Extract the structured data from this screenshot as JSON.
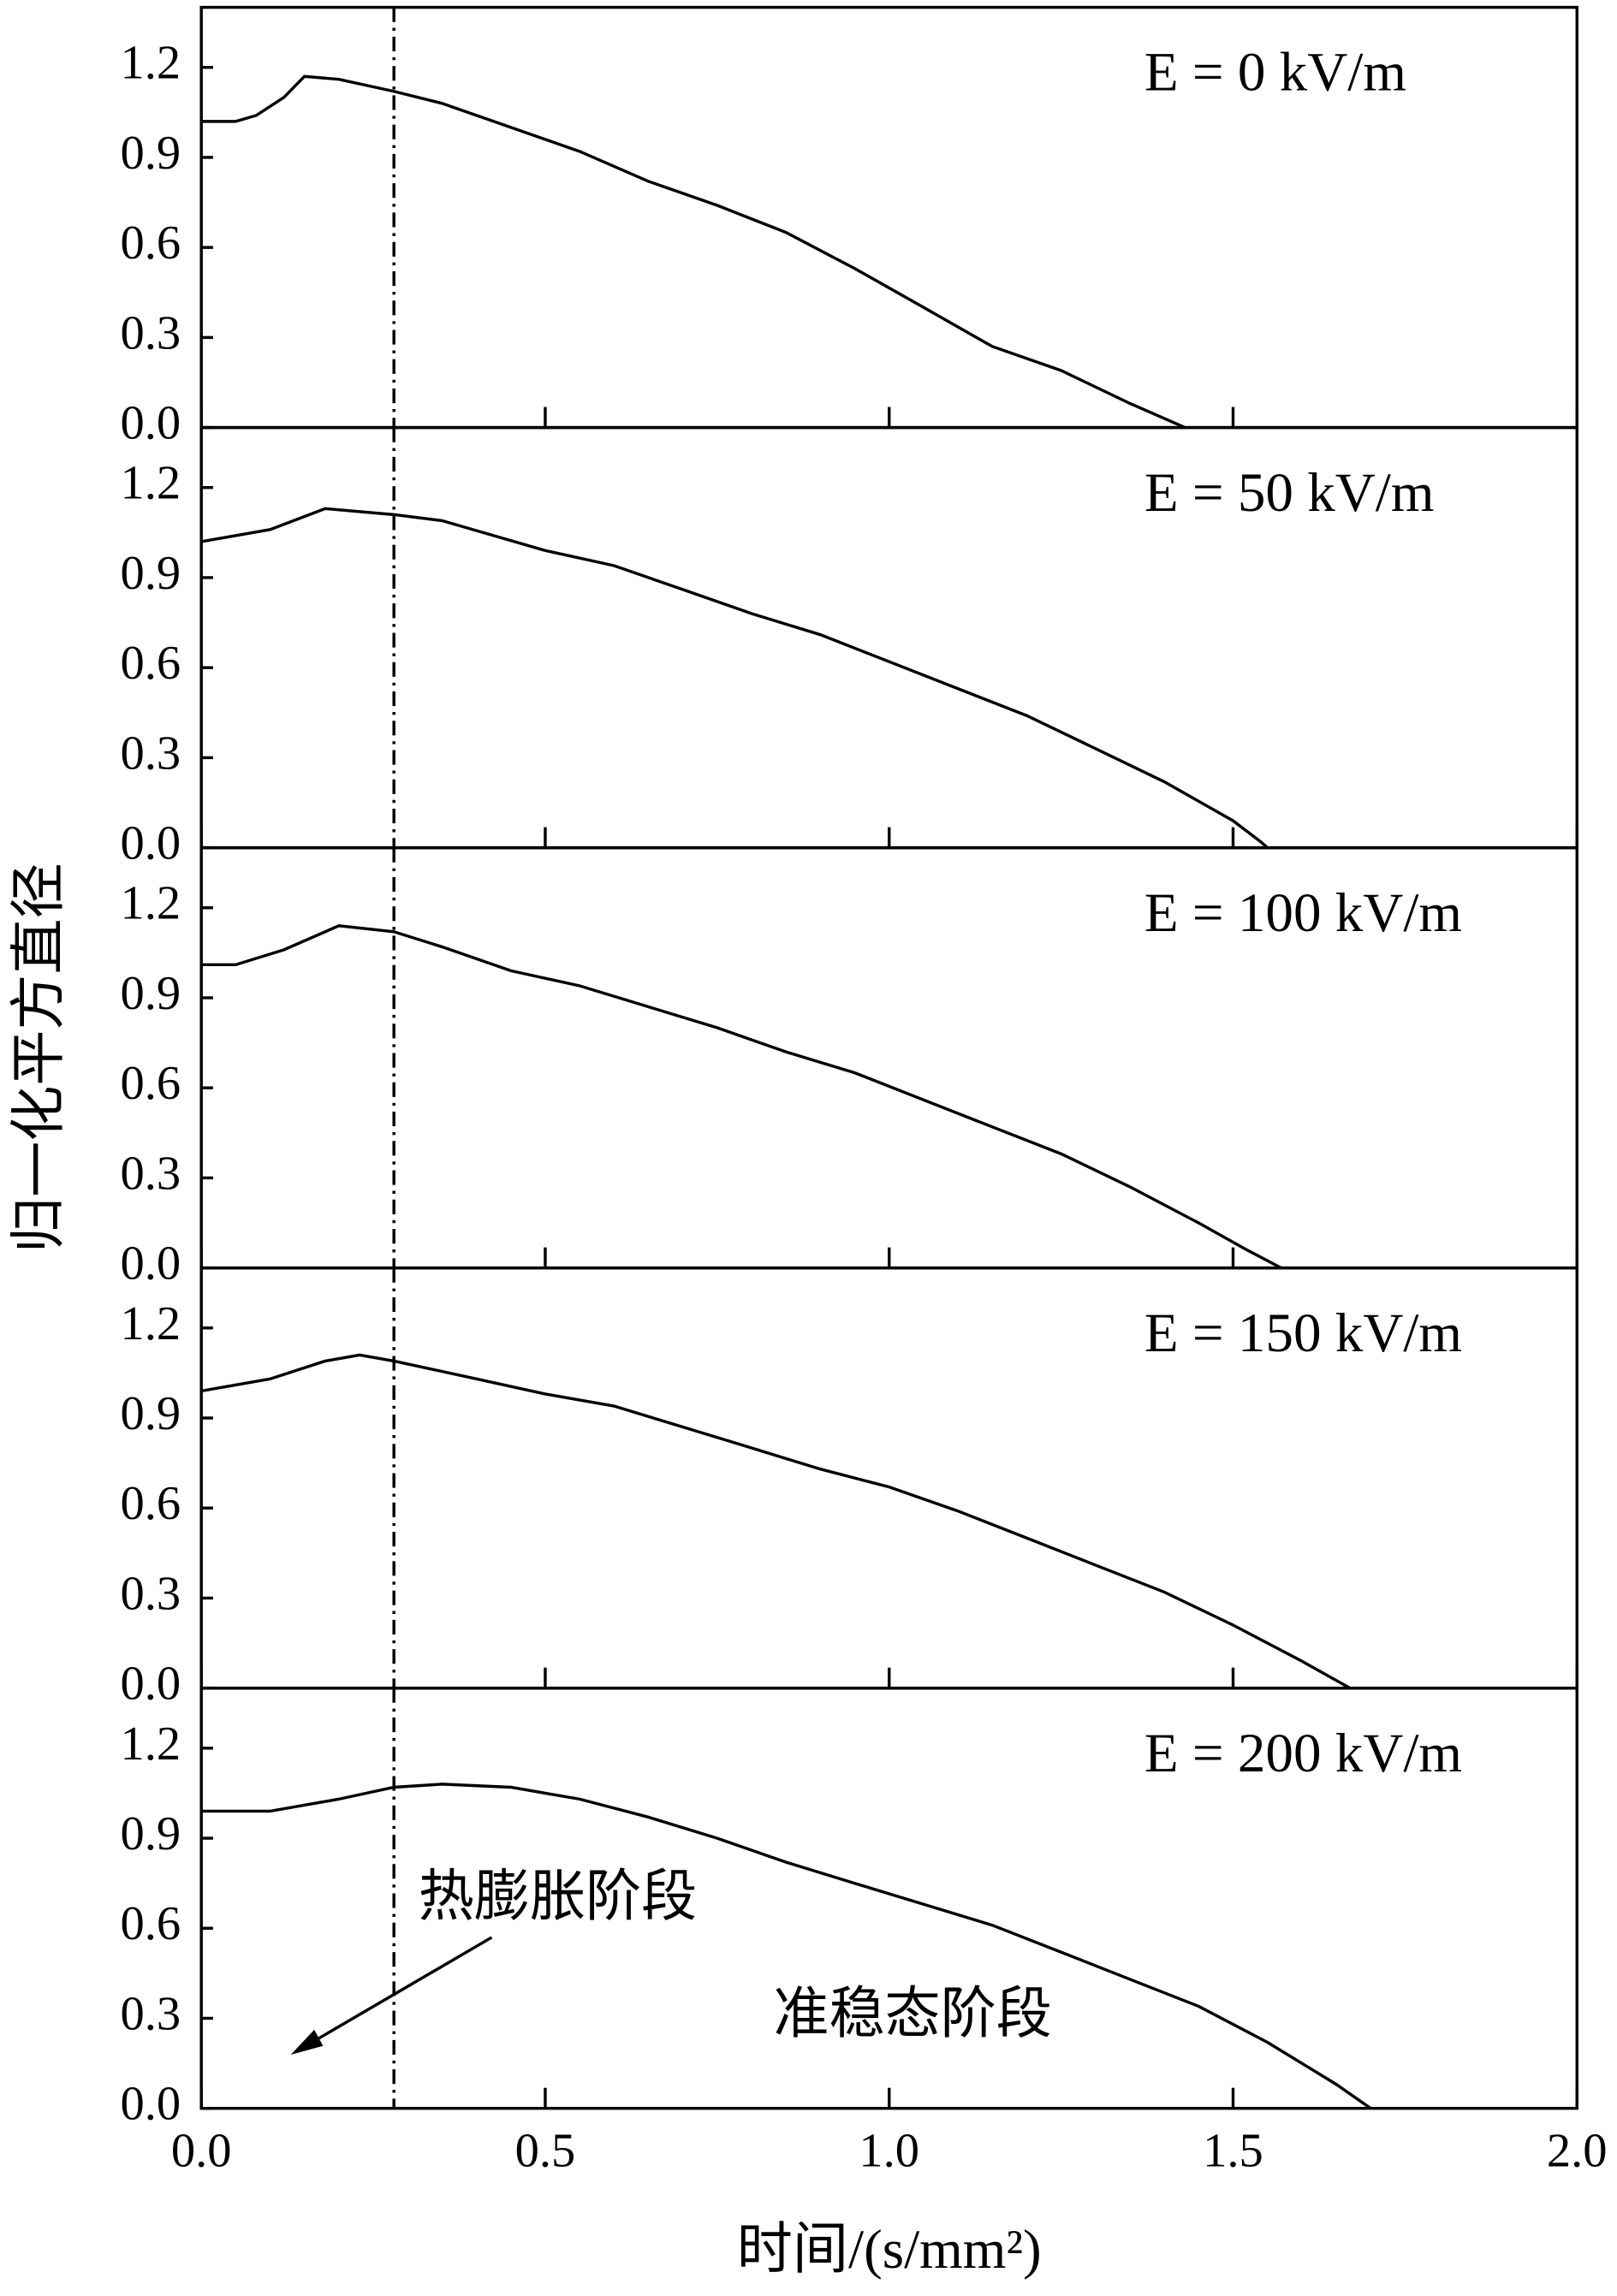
{
  "chart_data": [
    {
      "type": "line",
      "label": "E = 0 kV/m",
      "color": "#000000",
      "xlim": [
        0,
        2
      ],
      "ylim": [
        0,
        1.4
      ],
      "xticks": [
        0,
        0.5,
        1,
        1.5,
        2
      ],
      "yticks": [
        {
          "value": 0,
          "label": "0.0"
        },
        {
          "value": 0.3,
          "label": "0.3"
        },
        {
          "value": 0.6,
          "label": "0.6"
        },
        {
          "value": 0.9,
          "label": "0.9"
        },
        {
          "value": 1.2,
          "label": "1.2"
        }
      ],
      "vline_x": 0.28,
      "x": [
        0,
        0.05,
        0.08,
        0.12,
        0.15,
        0.2,
        0.28,
        0.35,
        0.45,
        0.55,
        0.65,
        0.75,
        0.85,
        0.95,
        1.05,
        1.15,
        1.25,
        1.35,
        1.43
      ],
      "values": [
        1.02,
        1.02,
        1.04,
        1.1,
        1.17,
        1.16,
        1.12,
        1.08,
        1.0,
        0.92,
        0.82,
        0.74,
        0.65,
        0.53,
        0.4,
        0.27,
        0.19,
        0.08,
        0.0
      ]
    },
    {
      "type": "line",
      "label": "E = 50 kV/m",
      "color": "#000000",
      "xlim": [
        0,
        2
      ],
      "ylim": [
        0,
        1.4
      ],
      "xticks": [
        0,
        0.5,
        1,
        1.5,
        2
      ],
      "yticks": [
        {
          "value": 0,
          "label": "0.0"
        },
        {
          "value": 0.3,
          "label": "0.3"
        },
        {
          "value": 0.6,
          "label": "0.6"
        },
        {
          "value": 0.9,
          "label": "0.9"
        },
        {
          "value": 1.2,
          "label": "1.2"
        }
      ],
      "vline_x": 0.28,
      "x": [
        0,
        0.1,
        0.18,
        0.28,
        0.35,
        0.5,
        0.6,
        0.7,
        0.8,
        0.9,
        1.0,
        1.1,
        1.2,
        1.3,
        1.4,
        1.5,
        1.54,
        1.55
      ],
      "values": [
        1.02,
        1.06,
        1.13,
        1.11,
        1.09,
        0.99,
        0.94,
        0.86,
        0.78,
        0.71,
        0.62,
        0.53,
        0.44,
        0.33,
        0.22,
        0.09,
        0.02,
        0.0
      ]
    },
    {
      "type": "line",
      "label": "E = 100 kV/m",
      "color": "#000000",
      "xlim": [
        0,
        2
      ],
      "ylim": [
        0,
        1.4
      ],
      "ylabel": "归一化平方直径",
      "xticks": [
        0,
        0.5,
        1,
        1.5,
        2
      ],
      "yticks": [
        {
          "value": 0,
          "label": "0.0"
        },
        {
          "value": 0.3,
          "label": "0.3"
        },
        {
          "value": 0.6,
          "label": "0.6"
        },
        {
          "value": 0.9,
          "label": "0.9"
        },
        {
          "value": 1.2,
          "label": "1.2"
        }
      ],
      "vline_x": 0.28,
      "x": [
        0,
        0.05,
        0.12,
        0.2,
        0.28,
        0.35,
        0.45,
        0.55,
        0.65,
        0.75,
        0.85,
        0.95,
        1.05,
        1.15,
        1.25,
        1.35,
        1.45,
        1.52,
        1.57
      ],
      "values": [
        1.01,
        1.01,
        1.06,
        1.14,
        1.12,
        1.07,
        0.99,
        0.94,
        0.87,
        0.8,
        0.72,
        0.65,
        0.56,
        0.47,
        0.38,
        0.27,
        0.15,
        0.06,
        0.0
      ]
    },
    {
      "type": "line",
      "label": "E = 150 kV/m",
      "color": "#000000",
      "xlim": [
        0,
        2
      ],
      "ylim": [
        0,
        1.4
      ],
      "xticks": [
        0,
        0.5,
        1,
        1.5,
        2
      ],
      "yticks": [
        {
          "value": 0,
          "label": "0.0"
        },
        {
          "value": 0.3,
          "label": "0.3"
        },
        {
          "value": 0.6,
          "label": "0.6"
        },
        {
          "value": 0.9,
          "label": "0.9"
        },
        {
          "value": 1.2,
          "label": "1.2"
        }
      ],
      "vline_x": 0.28,
      "x": [
        0,
        0.1,
        0.18,
        0.23,
        0.28,
        0.4,
        0.5,
        0.6,
        0.7,
        0.8,
        0.9,
        1.0,
        1.1,
        1.2,
        1.3,
        1.4,
        1.5,
        1.6,
        1.67
      ],
      "values": [
        0.99,
        1.03,
        1.09,
        1.11,
        1.09,
        1.03,
        0.98,
        0.94,
        0.87,
        0.8,
        0.73,
        0.67,
        0.59,
        0.5,
        0.41,
        0.32,
        0.21,
        0.09,
        0.0
      ]
    },
    {
      "type": "line",
      "label": "E = 200 kV/m",
      "color": "#000000",
      "xlim": [
        0,
        2
      ],
      "ylim": [
        0,
        1.4
      ],
      "xlabel": "时间/(s/mm²)",
      "xticks": [
        {
          "value": 0,
          "label": "0.0"
        },
        {
          "value": 0.5,
          "label": "0.5"
        },
        {
          "value": 1,
          "label": "1.0"
        },
        {
          "value": 1.5,
          "label": "1.5"
        },
        {
          "value": 2,
          "label": "2.0"
        }
      ],
      "yticks": [
        {
          "value": 0,
          "label": "0.0"
        },
        {
          "value": 0.3,
          "label": "0.3"
        },
        {
          "value": 0.6,
          "label": "0.6"
        },
        {
          "value": 0.9,
          "label": "0.9"
        },
        {
          "value": 1.2,
          "label": "1.2"
        }
      ],
      "vline_x": 0.28,
      "annotations": [
        "热膨胀阶段",
        "准稳态阶段"
      ],
      "x": [
        0,
        0.1,
        0.2,
        0.28,
        0.35,
        0.45,
        0.55,
        0.65,
        0.75,
        0.85,
        0.95,
        1.05,
        1.15,
        1.25,
        1.35,
        1.45,
        1.55,
        1.65,
        1.7
      ],
      "values": [
        0.99,
        0.99,
        1.03,
        1.07,
        1.08,
        1.07,
        1.03,
        0.97,
        0.9,
        0.82,
        0.75,
        0.68,
        0.61,
        0.52,
        0.43,
        0.34,
        0.22,
        0.08,
        0.0
      ]
    }
  ]
}
